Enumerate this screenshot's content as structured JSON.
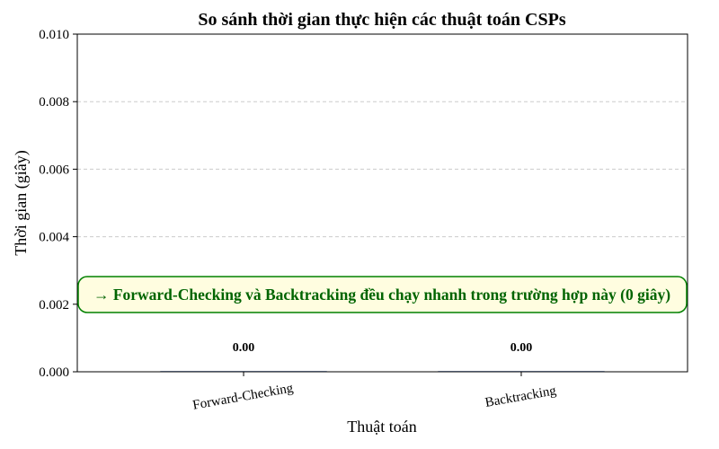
{
  "chart_data": {
    "type": "bar",
    "title": "So sánh thời gian thực hiện các thuật toán CSPs",
    "xlabel": "Thuật toán",
    "ylabel": "Thời gian (giây)",
    "categories": [
      "Forward-Checking",
      "Backtracking"
    ],
    "values": [
      0.0,
      0.0
    ],
    "value_labels": [
      "0.00",
      "0.00"
    ],
    "ylim": [
      0,
      0.01
    ],
    "yticks": [
      "0.000",
      "0.002",
      "0.004",
      "0.006",
      "0.008",
      "0.010"
    ],
    "ytick_values": [
      0,
      0.002,
      0.004,
      0.006,
      0.008,
      0.01
    ],
    "grid": "y-dashed",
    "annotation": {
      "text": "→ Forward-Checking và Backtracking đều chạy nhanh trong trường hợp này (0 giây)",
      "text_color": "#006400",
      "box_fill": "#fffde0",
      "box_border": "#008000"
    },
    "x_tick_rotation": 10
  }
}
